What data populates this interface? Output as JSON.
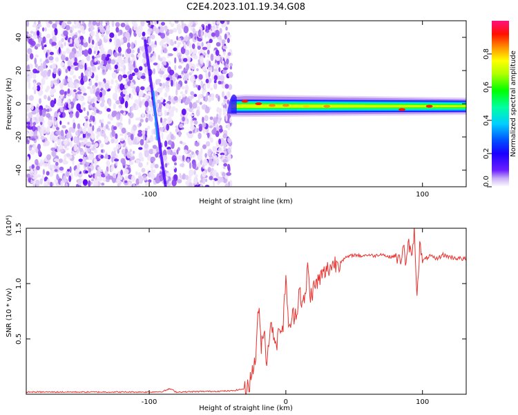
{
  "title": "C2E4.2023.101.19.34.G08",
  "chart_data": [
    {
      "type": "heatmap",
      "xlabel": "Height of straight line (km)",
      "ylabel": "Frequency (Hz)",
      "xlim": [
        -190,
        132
      ],
      "ylim": [
        -50,
        50
      ],
      "x_ticks": [
        -100,
        0,
        100
      ],
      "x_tick_labels": [
        "-100",
        "",
        "100"
      ],
      "y_ticks": [
        -40,
        -20,
        0,
        20,
        40
      ],
      "y_tick_labels": [
        "-40",
        "-20",
        "0",
        "20",
        "40"
      ],
      "noise_region_x": [
        -190,
        -40
      ],
      "signal_band": {
        "x_start": -40,
        "x_end": 132,
        "center_hz": -1.5,
        "half_width_hz": 3
      },
      "streak": {
        "x": [
          -103,
          -88
        ],
        "y": [
          38,
          -50
        ]
      },
      "peaks": [
        {
          "x": -30,
          "y": 1.5,
          "amplitude": 0.9
        },
        {
          "x": -20,
          "y": 0,
          "amplitude": 0.9
        },
        {
          "x": -10,
          "y": -1,
          "amplitude": 0.85
        },
        {
          "x": 0,
          "y": -1,
          "amplitude": 0.8
        },
        {
          "x": 15,
          "y": -1.5,
          "amplitude": 0.75
        },
        {
          "x": 30,
          "y": -1.5,
          "amplitude": 0.8
        },
        {
          "x": 85,
          "y": -3.5,
          "amplitude": 0.95
        },
        {
          "x": 105,
          "y": -1.5,
          "amplitude": 0.9
        }
      ],
      "grid": false,
      "colorbar": {
        "label": "Normalized spectral amplitude",
        "range": [
          0,
          1
        ],
        "ticks": [
          0.0,
          0.2,
          0.4,
          0.6,
          0.8
        ],
        "tick_labels": [
          "0.0",
          "0.2",
          "0.4",
          "0.6",
          "0.8"
        ],
        "colormap": [
          "#ffffff",
          "#d9c6f5",
          "#8a3ff0",
          "#4b00ff",
          "#0000ff",
          "#00b0ff",
          "#00ffd0",
          "#00ff00",
          "#b0ff00",
          "#ffff00",
          "#ff9000",
          "#ff0000",
          "#ff0080"
        ]
      }
    },
    {
      "type": "line",
      "xlabel": "Height of straight line (km)",
      "ylabel": "SNR (10 * v/v)",
      "y_multiplier_label": "(x10⁴)",
      "xlim": [
        -190,
        132
      ],
      "ylim": [
        0,
        1.5
      ],
      "x_ticks": [
        -100,
        0,
        100
      ],
      "x_tick_labels": [
        "-100",
        "0",
        "100"
      ],
      "y_ticks": [
        0.5,
        1.0,
        1.5
      ],
      "y_tick_labels": [
        "0.5",
        "1.0",
        "1.5"
      ],
      "grid": false,
      "color": "#e8302c",
      "series": [
        {
          "x": [
            -190,
            -160,
            -130,
            -100,
            -90,
            -85,
            -80,
            -60,
            -40,
            -30,
            -26,
            -22,
            -20,
            -18,
            -16,
            -14,
            -12,
            -10,
            -8,
            -6,
            -4,
            -2,
            0,
            2,
            4,
            6,
            8,
            10,
            12,
            14,
            16,
            18,
            20,
            25,
            30,
            35,
            40,
            45,
            50,
            55,
            60,
            65,
            70,
            75,
            80,
            84,
            86,
            88,
            90,
            92,
            94,
            96,
            98,
            100,
            105,
            110,
            115,
            120,
            125,
            132
          ],
          "y": [
            0.02,
            0.02,
            0.02,
            0.02,
            0.025,
            0.05,
            0.02,
            0.025,
            0.03,
            0.05,
            0.12,
            0.35,
            0.78,
            0.45,
            0.6,
            0.3,
            0.55,
            0.62,
            0.5,
            0.48,
            0.62,
            0.58,
            1.12,
            0.55,
            0.68,
            0.72,
            0.75,
            0.98,
            0.8,
            0.85,
            1.15,
            0.88,
            0.95,
            1.05,
            1.12,
            1.18,
            1.2,
            1.24,
            1.26,
            1.25,
            1.26,
            1.25,
            1.27,
            1.24,
            1.25,
            1.2,
            1.36,
            1.15,
            1.38,
            1.22,
            1.48,
            0.9,
            1.35,
            1.2,
            1.25,
            1.22,
            1.26,
            1.24,
            1.23,
            1.22
          ]
        }
      ]
    }
  ]
}
